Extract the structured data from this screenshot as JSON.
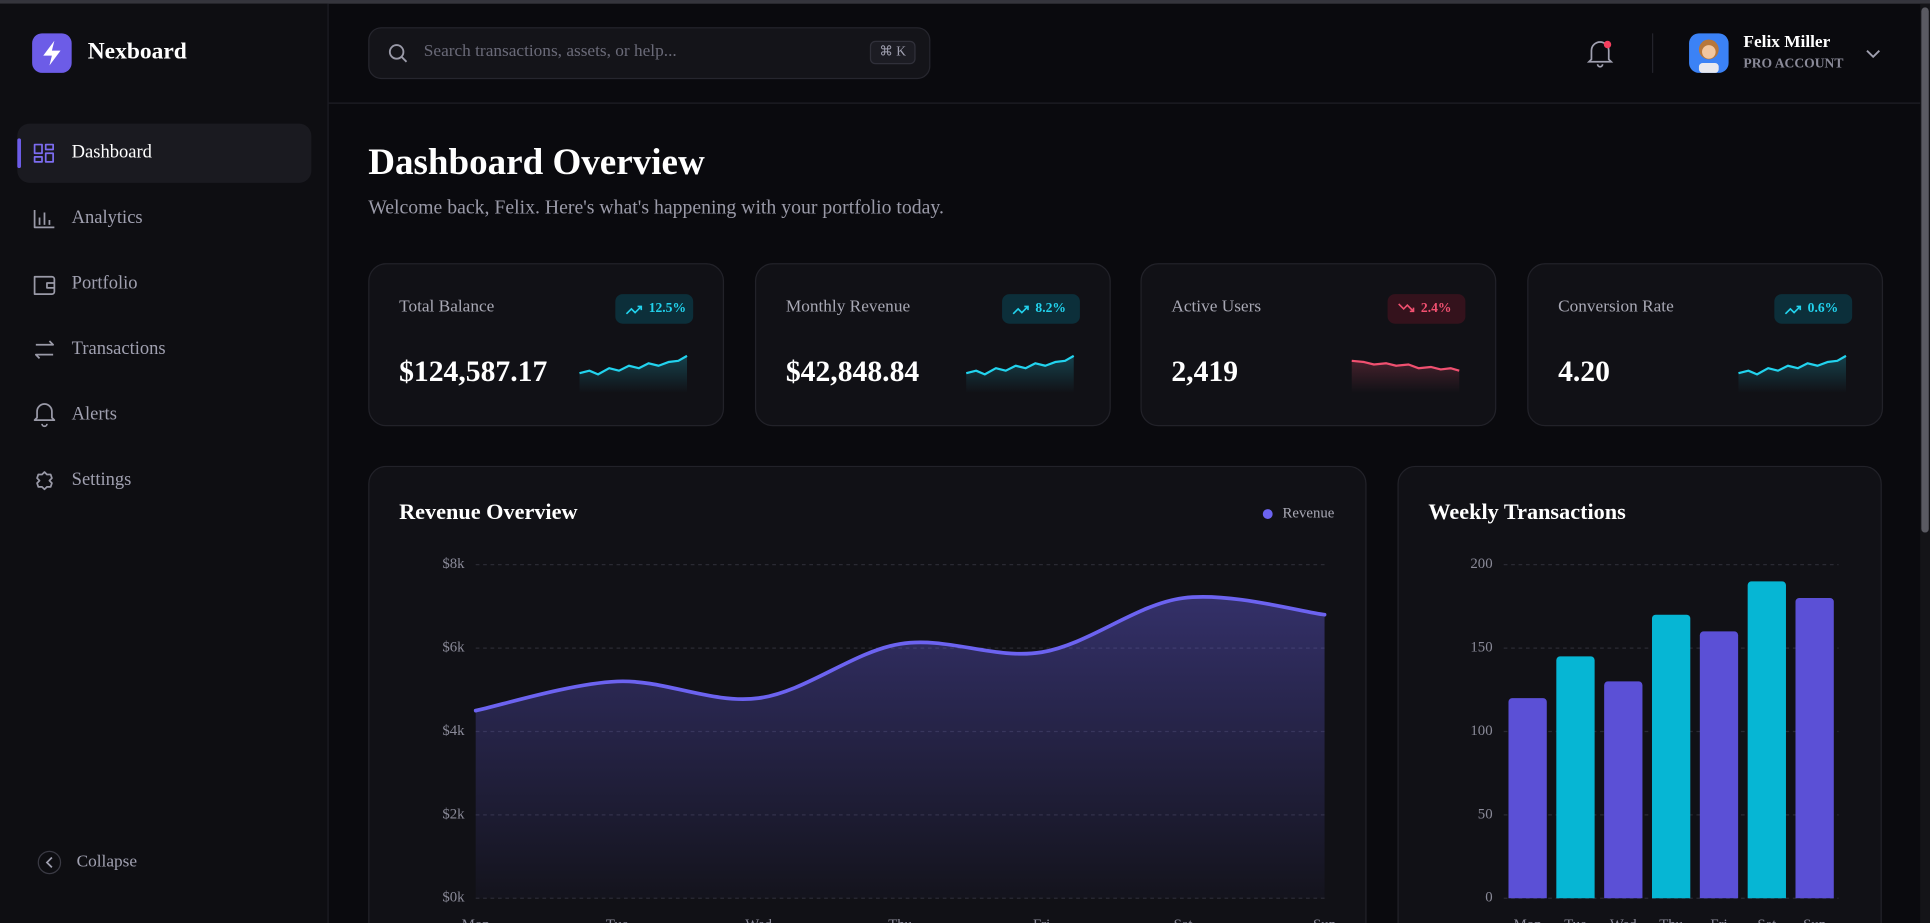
{
  "sidebar": {
    "brand": "Nexboard",
    "nav": [
      "Dashboard",
      "Analytics",
      "Portfolio",
      "Transactions",
      "Alerts",
      "Settings"
    ],
    "active": 0,
    "collapse": "Collapse"
  },
  "header": {
    "search_placeholder": "Search transactions, assets, or help...",
    "shortcut": "⌘ K",
    "user": {
      "name": "Felix Miller",
      "plan": "PRO ACCOUNT"
    }
  },
  "page": {
    "title": "Dashboard Overview",
    "subtitle": "Welcome back, Felix. Here's what's happening with your portfolio today."
  },
  "kpis": [
    {
      "label": "Total Balance",
      "value": "$124,587.17",
      "change": "12.5%",
      "trend": "up"
    },
    {
      "label": "Monthly Revenue",
      "value": "$42,848.84",
      "change": "8.2%",
      "trend": "up"
    },
    {
      "label": "Active Users",
      "value": "2,419",
      "change": "2.4%",
      "trend": "down"
    },
    {
      "label": "Conversion Rate",
      "value": "4.20",
      "change": "0.6%",
      "trend": "up"
    }
  ],
  "chart_data": [
    {
      "type": "area",
      "title": "Revenue Overview",
      "categories": [
        "Mon",
        "Tue",
        "Wed",
        "Thu",
        "Fri",
        "Sat",
        "Sun"
      ],
      "series": [
        {
          "name": "Revenue",
          "color": "#6c63f0",
          "values": [
            4500,
            5200,
            4800,
            6100,
            5900,
            7200,
            6800
          ]
        }
      ],
      "ylim": [
        0,
        8000
      ],
      "yticks": [
        {
          "value": 0,
          "label": "$0k"
        },
        {
          "value": 2000,
          "label": "$2k"
        },
        {
          "value": 4000,
          "label": "$4k"
        },
        {
          "value": 6000,
          "label": "$6k"
        },
        {
          "value": 8000,
          "label": "$8k"
        }
      ],
      "grid": true,
      "legend": "top-right"
    },
    {
      "type": "bar",
      "title": "Weekly Transactions",
      "categories": [
        "Mon",
        "Tue",
        "Wed",
        "Thu",
        "Fri",
        "Sat",
        "Sun"
      ],
      "values": [
        120,
        145,
        130,
        170,
        160,
        190,
        180
      ],
      "colors": [
        "#5b50d6",
        "#06b6d4",
        "#5b50d6",
        "#06b6d4",
        "#5b50d6",
        "#06b6d4",
        "#5b50d6"
      ],
      "ylim": [
        0,
        200
      ],
      "yticks": [
        0,
        50,
        100,
        150,
        200
      ],
      "grid": true
    }
  ]
}
